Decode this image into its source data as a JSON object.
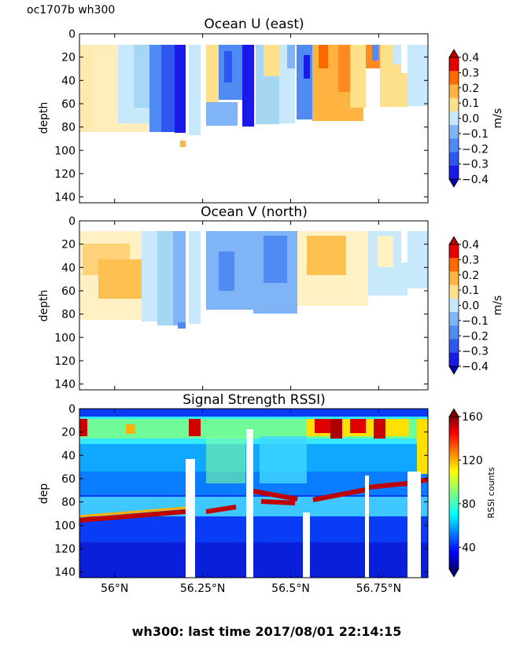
{
  "header": {
    "cruise": "oc1707b wh300"
  },
  "footer": {
    "caption": "wh300: last time 2017/08/01 22:14:15"
  },
  "chart_data": [
    {
      "type": "heatmap",
      "title": "Ocean U (east)",
      "ylabel": "depth",
      "ylim": [
        145,
        0
      ],
      "yticks": [
        0,
        20,
        40,
        60,
        80,
        100,
        120,
        140
      ],
      "xlim": [
        55.9,
        56.89
      ],
      "xticks": [
        56.0,
        56.25,
        56.5,
        56.75
      ],
      "colorbar": {
        "label": "m/s",
        "range": [
          -0.4,
          0.4
        ],
        "ticks": [
          "0.4",
          "0.3",
          "0.2",
          "0.1",
          "0.0",
          "−0.1",
          "−0.2",
          "−0.3",
          "−0.4"
        ]
      }
    },
    {
      "type": "heatmap",
      "title": "Ocean V (north)",
      "ylabel": "depth",
      "ylim": [
        145,
        0
      ],
      "yticks": [
        0,
        20,
        40,
        60,
        80,
        100,
        120,
        140
      ],
      "xlim": [
        55.9,
        56.89
      ],
      "xticks": [
        56.0,
        56.25,
        56.5,
        56.75
      ],
      "colorbar": {
        "label": "m/s",
        "range": [
          -0.4,
          0.4
        ],
        "ticks": [
          "0.4",
          "0.3",
          "0.2",
          "0.1",
          "0.0",
          "−0.1",
          "−0.2",
          "−0.3",
          "−0.4"
        ]
      }
    },
    {
      "type": "heatmap",
      "title": "Signal Strength RSSI)",
      "ylabel": "dep",
      "ylim": [
        145,
        0
      ],
      "yticks": [
        0,
        20,
        40,
        60,
        80,
        100,
        120,
        140
      ],
      "xlim": [
        55.9,
        56.89
      ],
      "xticks": [
        56.0,
        56.25,
        56.5,
        56.75
      ],
      "xticklabels": [
        "56°N",
        "56.25°N",
        "56.5°N",
        "56.75°N"
      ],
      "colorbar": {
        "label": "RSSI counts",
        "range": [
          20,
          160
        ],
        "ticks": [
          "160",
          "120",
          "80",
          "40"
        ]
      }
    }
  ]
}
